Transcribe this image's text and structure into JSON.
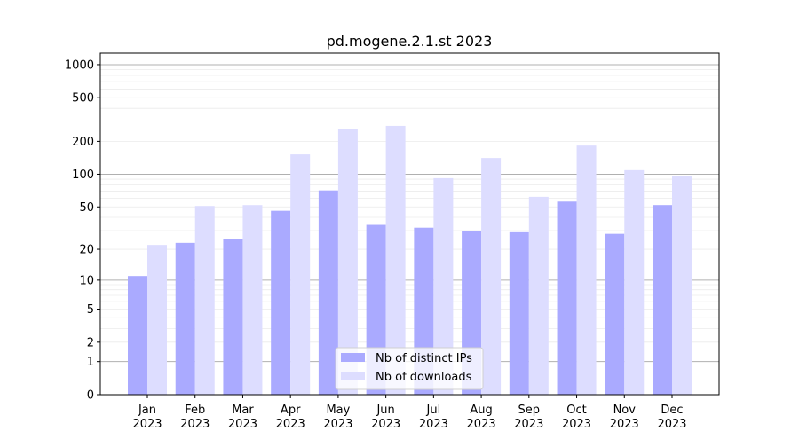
{
  "chart_data": {
    "type": "bar",
    "title": "pd.mogene.2.1.st 2023",
    "xlabel": "",
    "ylabel": "",
    "yscale": "symlog (log10(1+y))",
    "ylim": [
      0,
      1300
    ],
    "yticks": [
      0,
      1,
      2,
      5,
      10,
      20,
      50,
      100,
      200,
      500,
      1000
    ],
    "grid": true,
    "legend_position": "bottom-center",
    "categories": [
      "Jan\n2023",
      "Feb\n2023",
      "Mar\n2023",
      "Apr\n2023",
      "May\n2023",
      "Jun\n2023",
      "Jul\n2023",
      "Aug\n2023",
      "Sep\n2023",
      "Oct\n2023",
      "Nov\n2023",
      "Dec\n2023"
    ],
    "series": [
      {
        "name": "Nb of distinct IPs",
        "color": "#aaaaff",
        "values": [
          11,
          23,
          25,
          46,
          71,
          34,
          32,
          30,
          29,
          56,
          28,
          52
        ]
      },
      {
        "name": "Nb of downloads",
        "color": "#ddddff",
        "values": [
          22,
          51,
          52,
          152,
          261,
          277,
          92,
          141,
          62,
          183,
          109,
          97
        ]
      }
    ]
  }
}
